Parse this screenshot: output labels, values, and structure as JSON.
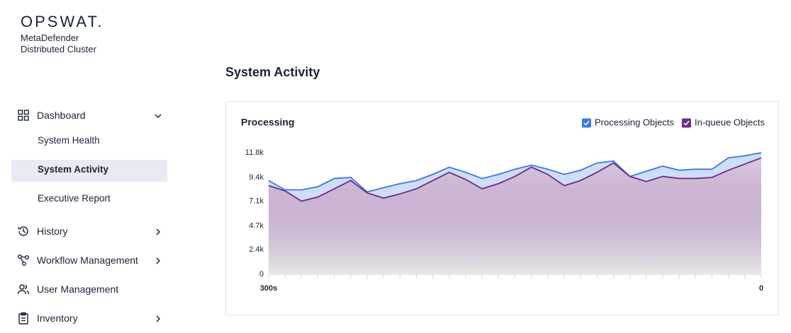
{
  "sidebar": {
    "logo": "OPSWAT.",
    "product": [
      "MetaDefender",
      "Distributed Cluster"
    ],
    "nav": [
      {
        "label": "Dashboard",
        "children": [
          "System Health",
          "System Activity",
          "Executive Report"
        ]
      },
      {
        "label": "History"
      },
      {
        "label": "Workflow Management"
      },
      {
        "label": "User Management"
      },
      {
        "label": "Inventory"
      }
    ]
  },
  "page_title": "System Activity",
  "chart_data": {
    "type": "area",
    "title": "Processing",
    "x": [
      300,
      290,
      280,
      270,
      260,
      250,
      240,
      230,
      220,
      210,
      200,
      190,
      180,
      170,
      160,
      150,
      140,
      130,
      120,
      110,
      100,
      90,
      80,
      70,
      60,
      50,
      40,
      30,
      20,
      10,
      0
    ],
    "xlim": [
      300,
      0
    ],
    "xticks": [
      {
        "value": 300,
        "label": "300s"
      },
      0
    ],
    "ylim": [
      0,
      11800
    ],
    "yticks": [
      0,
      {
        "value": 2400,
        "label": "2.4k"
      },
      {
        "value": 4700,
        "label": "4.7k"
      },
      {
        "value": 7100,
        "label": "7.1k"
      },
      {
        "value": 9400,
        "label": "9.4k"
      },
      {
        "value": 11800,
        "label": "11.8k"
      }
    ],
    "grid": false,
    "legend": "top-right",
    "series": [
      {
        "name": "Processing Objects",
        "color": "#3b78e7",
        "values": [
          9100,
          8200,
          8200,
          8500,
          9300,
          9400,
          8000,
          8400,
          8800,
          9100,
          9700,
          10400,
          9900,
          9300,
          9700,
          10200,
          10600,
          10200,
          9700,
          10100,
          10800,
          11000,
          9500,
          10000,
          10500,
          10100,
          10200,
          10200,
          11300,
          11500,
          11800
        ]
      },
      {
        "name": "In-queue Objects",
        "color": "#6d2c84",
        "values": [
          8600,
          8100,
          7100,
          7500,
          8300,
          9100,
          7900,
          7400,
          7800,
          8300,
          9100,
          9900,
          9200,
          8300,
          8800,
          9500,
          10400,
          9700,
          8600,
          9100,
          9900,
          10800,
          9500,
          9000,
          9500,
          9300,
          9300,
          9400,
          10100,
          10700,
          11300
        ]
      }
    ]
  }
}
